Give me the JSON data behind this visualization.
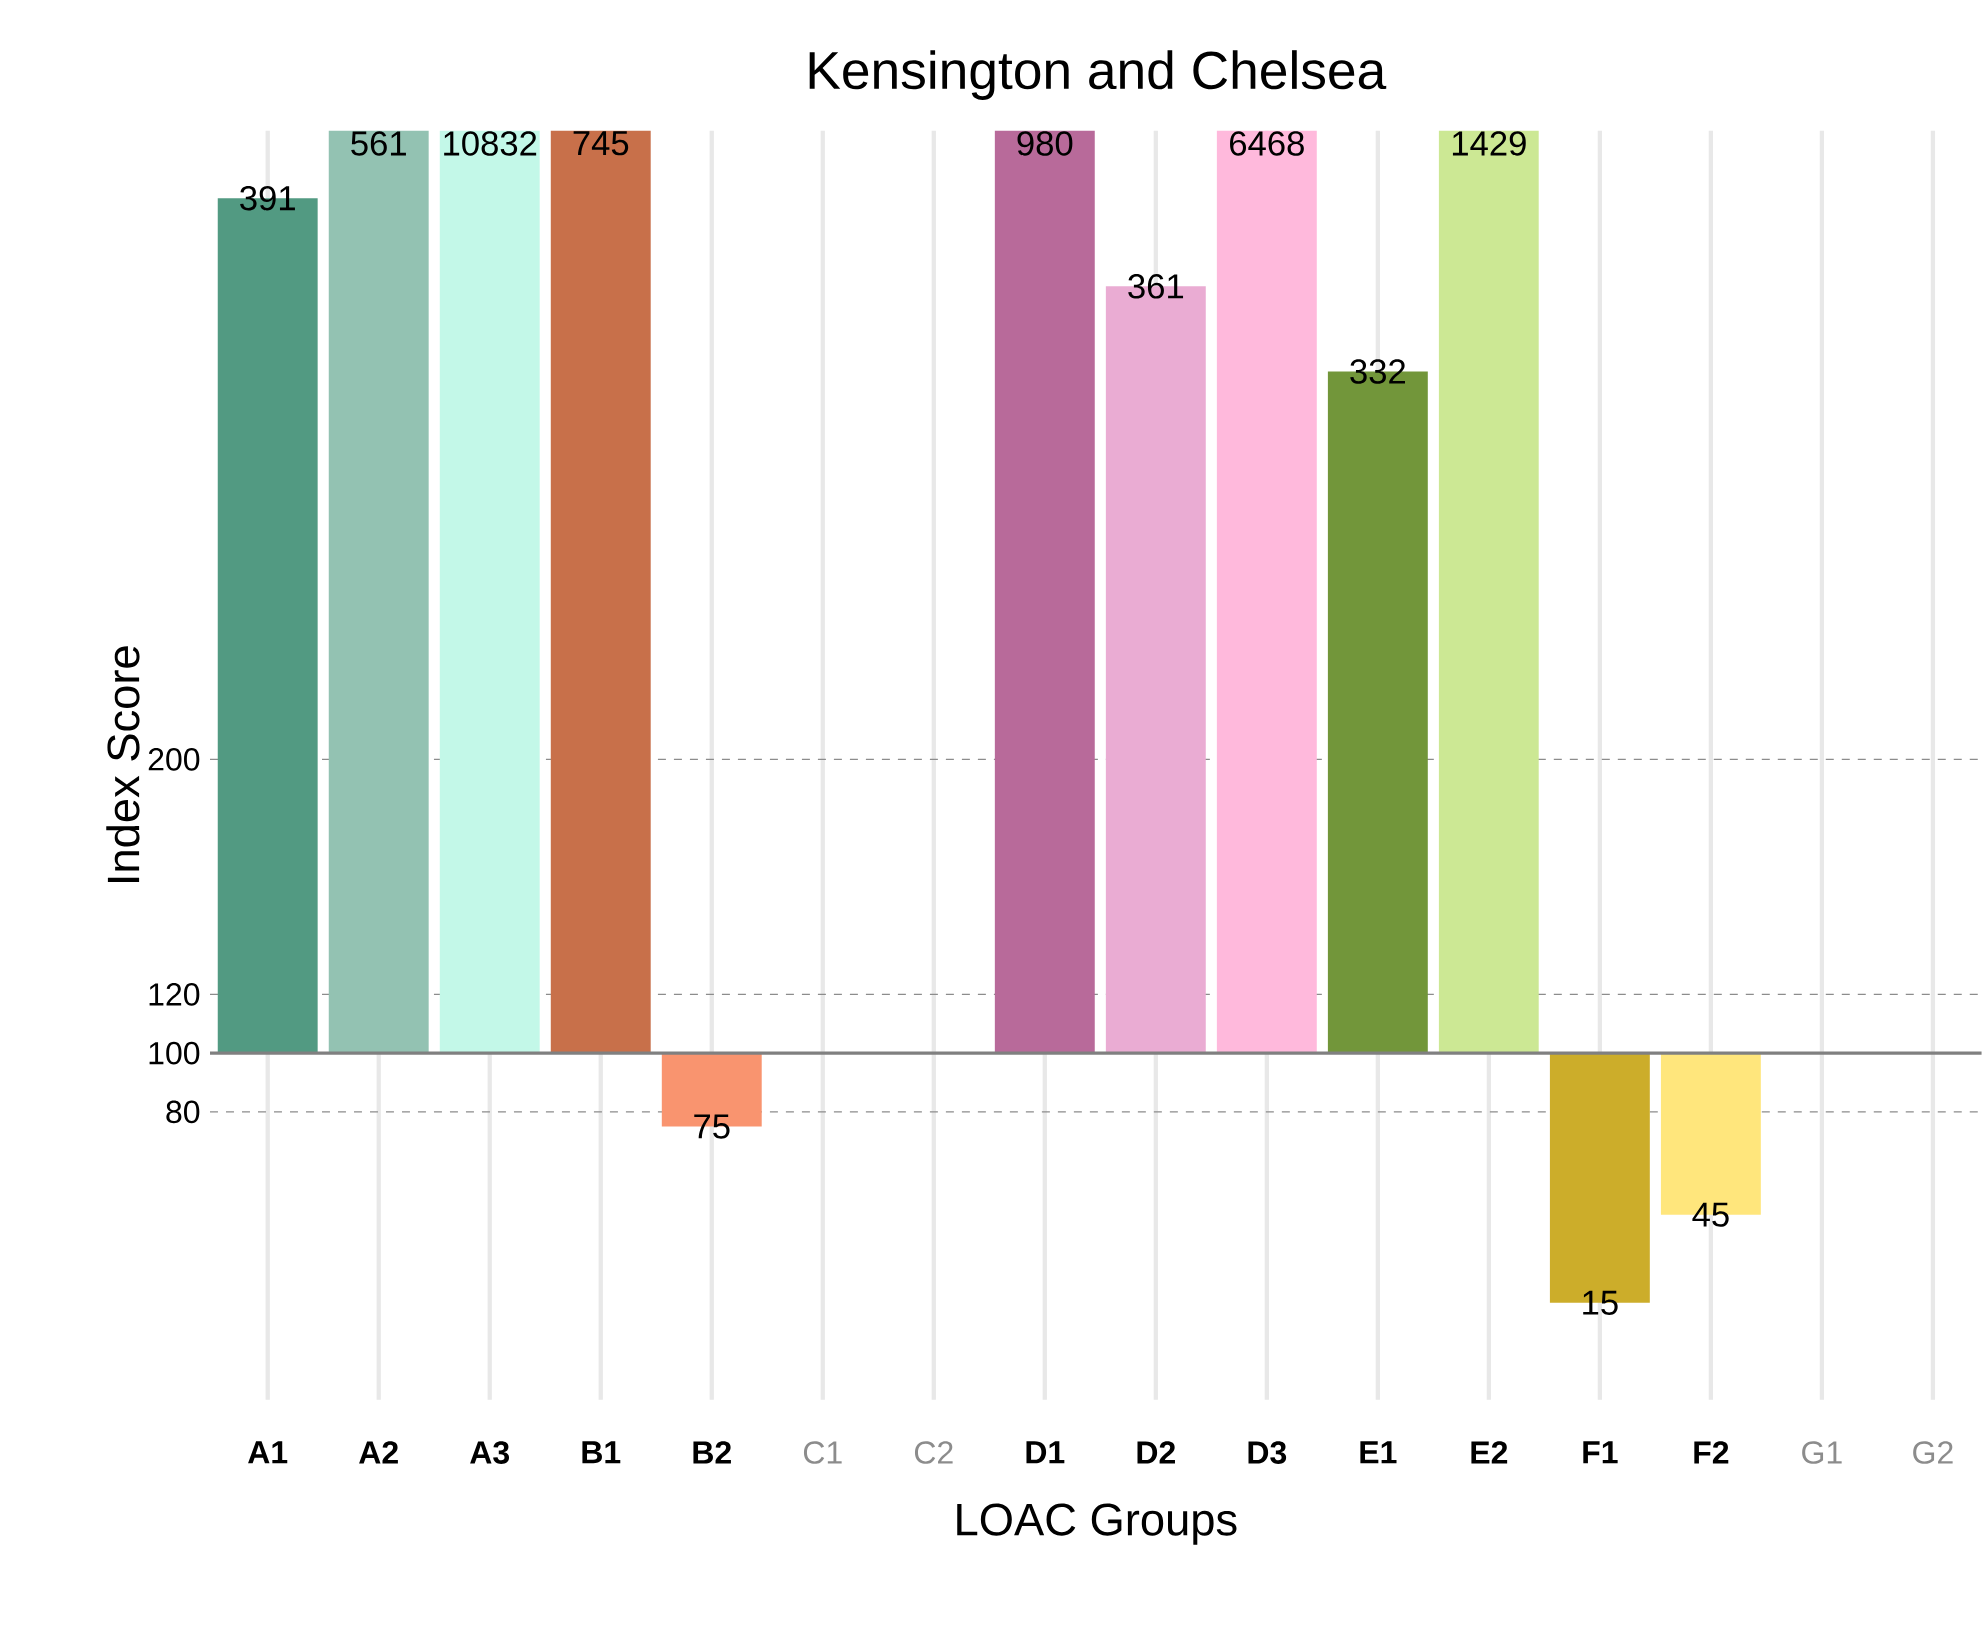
{
  "chart_data": {
    "type": "bar",
    "title": "Kensington and Chelsea",
    "xlabel": "LOAC Groups",
    "ylabel": "Index Score",
    "categories": [
      "A1",
      "A2",
      "A3",
      "B1",
      "B2",
      "C1",
      "C2",
      "D1",
      "D2",
      "D3",
      "E1",
      "E2",
      "F1",
      "F2",
      "G1",
      "G2"
    ],
    "base": [
      100,
      100,
      100,
      100,
      100,
      null,
      null,
      100,
      100,
      100,
      100,
      100,
      100,
      100,
      null,
      null
    ],
    "values": [
      291,
      461,
      10732,
      645,
      -25,
      null,
      null,
      880,
      261,
      6368,
      232,
      1329,
      -85,
      -55,
      null,
      null
    ],
    "value_labels": [
      "391",
      "561",
      "10832",
      "745",
      "75",
      null,
      null,
      "980",
      "361",
      "6468",
      "332",
      "1429",
      "15",
      "45",
      null,
      null
    ],
    "colors": [
      "#529a82",
      "#93c2b2",
      "#c3f8e8",
      "#c8704a",
      "#f9946f",
      null,
      null,
      "#b86a9a",
      "#eaacd3",
      "#ffb9dc",
      "#72963a",
      "#cce894",
      "#ccad2a",
      "#ffe67c",
      null,
      null
    ],
    "ylim": [
      -18,
      414
    ],
    "yticks": [
      80,
      100,
      120,
      200
    ],
    "grid": true,
    "ref_lines": [
      {
        "axis": "y",
        "value": 100,
        "line_style": "solid",
        "color": "#808080"
      }
    ]
  }
}
